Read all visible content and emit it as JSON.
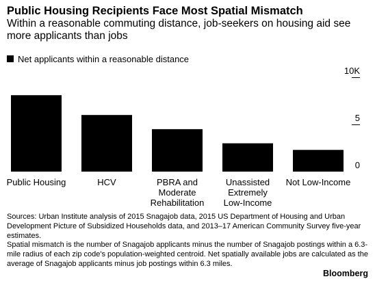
{
  "title": "Public Housing Recipients Face Most Spatial Mismatch",
  "subtitle": "Within a reasonable commuting distance, job-seekers on housing aid see more applicants than jobs",
  "legend_label": "Net applicants within a reasonable distance",
  "footnote": {
    "sources": "Sources: Urban Institute analysis of 2015 Snagajob data, 2015 US Department of Housing and Urban Development Picture of Subsidized Households data, and 2013–17 American Community Survey five-year estimates.",
    "note": "Spatial mismatch is the number of Snagajob applicants minus the number of Snagajob postings within a 6.3-mile radius of each zip code's population-weighted centroid. Net spatially available jobs are calculated as the average of Snagajob applicants minus job postings within 6.3 miles."
  },
  "brand": "Bloomberg",
  "colors": {
    "bar": "#000000",
    "text": "#000000",
    "background": "#ffffff"
  },
  "chart_data": {
    "type": "bar",
    "categories": [
      [
        "Public Housing"
      ],
      [
        "HCV"
      ],
      [
        "PBRA and",
        "Moderate",
        "Rehabilitation"
      ],
      [
        "Unassisted",
        "Extremely",
        "Low-Income"
      ],
      [
        "Not Low-Income"
      ]
    ],
    "values": [
      8100,
      6000,
      4500,
      3000,
      2300
    ],
    "ylim": [
      0,
      10000
    ],
    "y_ticks": [
      0,
      5,
      10
    ],
    "y_tick_labels": [
      "0",
      "5",
      "10K"
    ],
    "y_axis_position": "right",
    "grid": false
  }
}
